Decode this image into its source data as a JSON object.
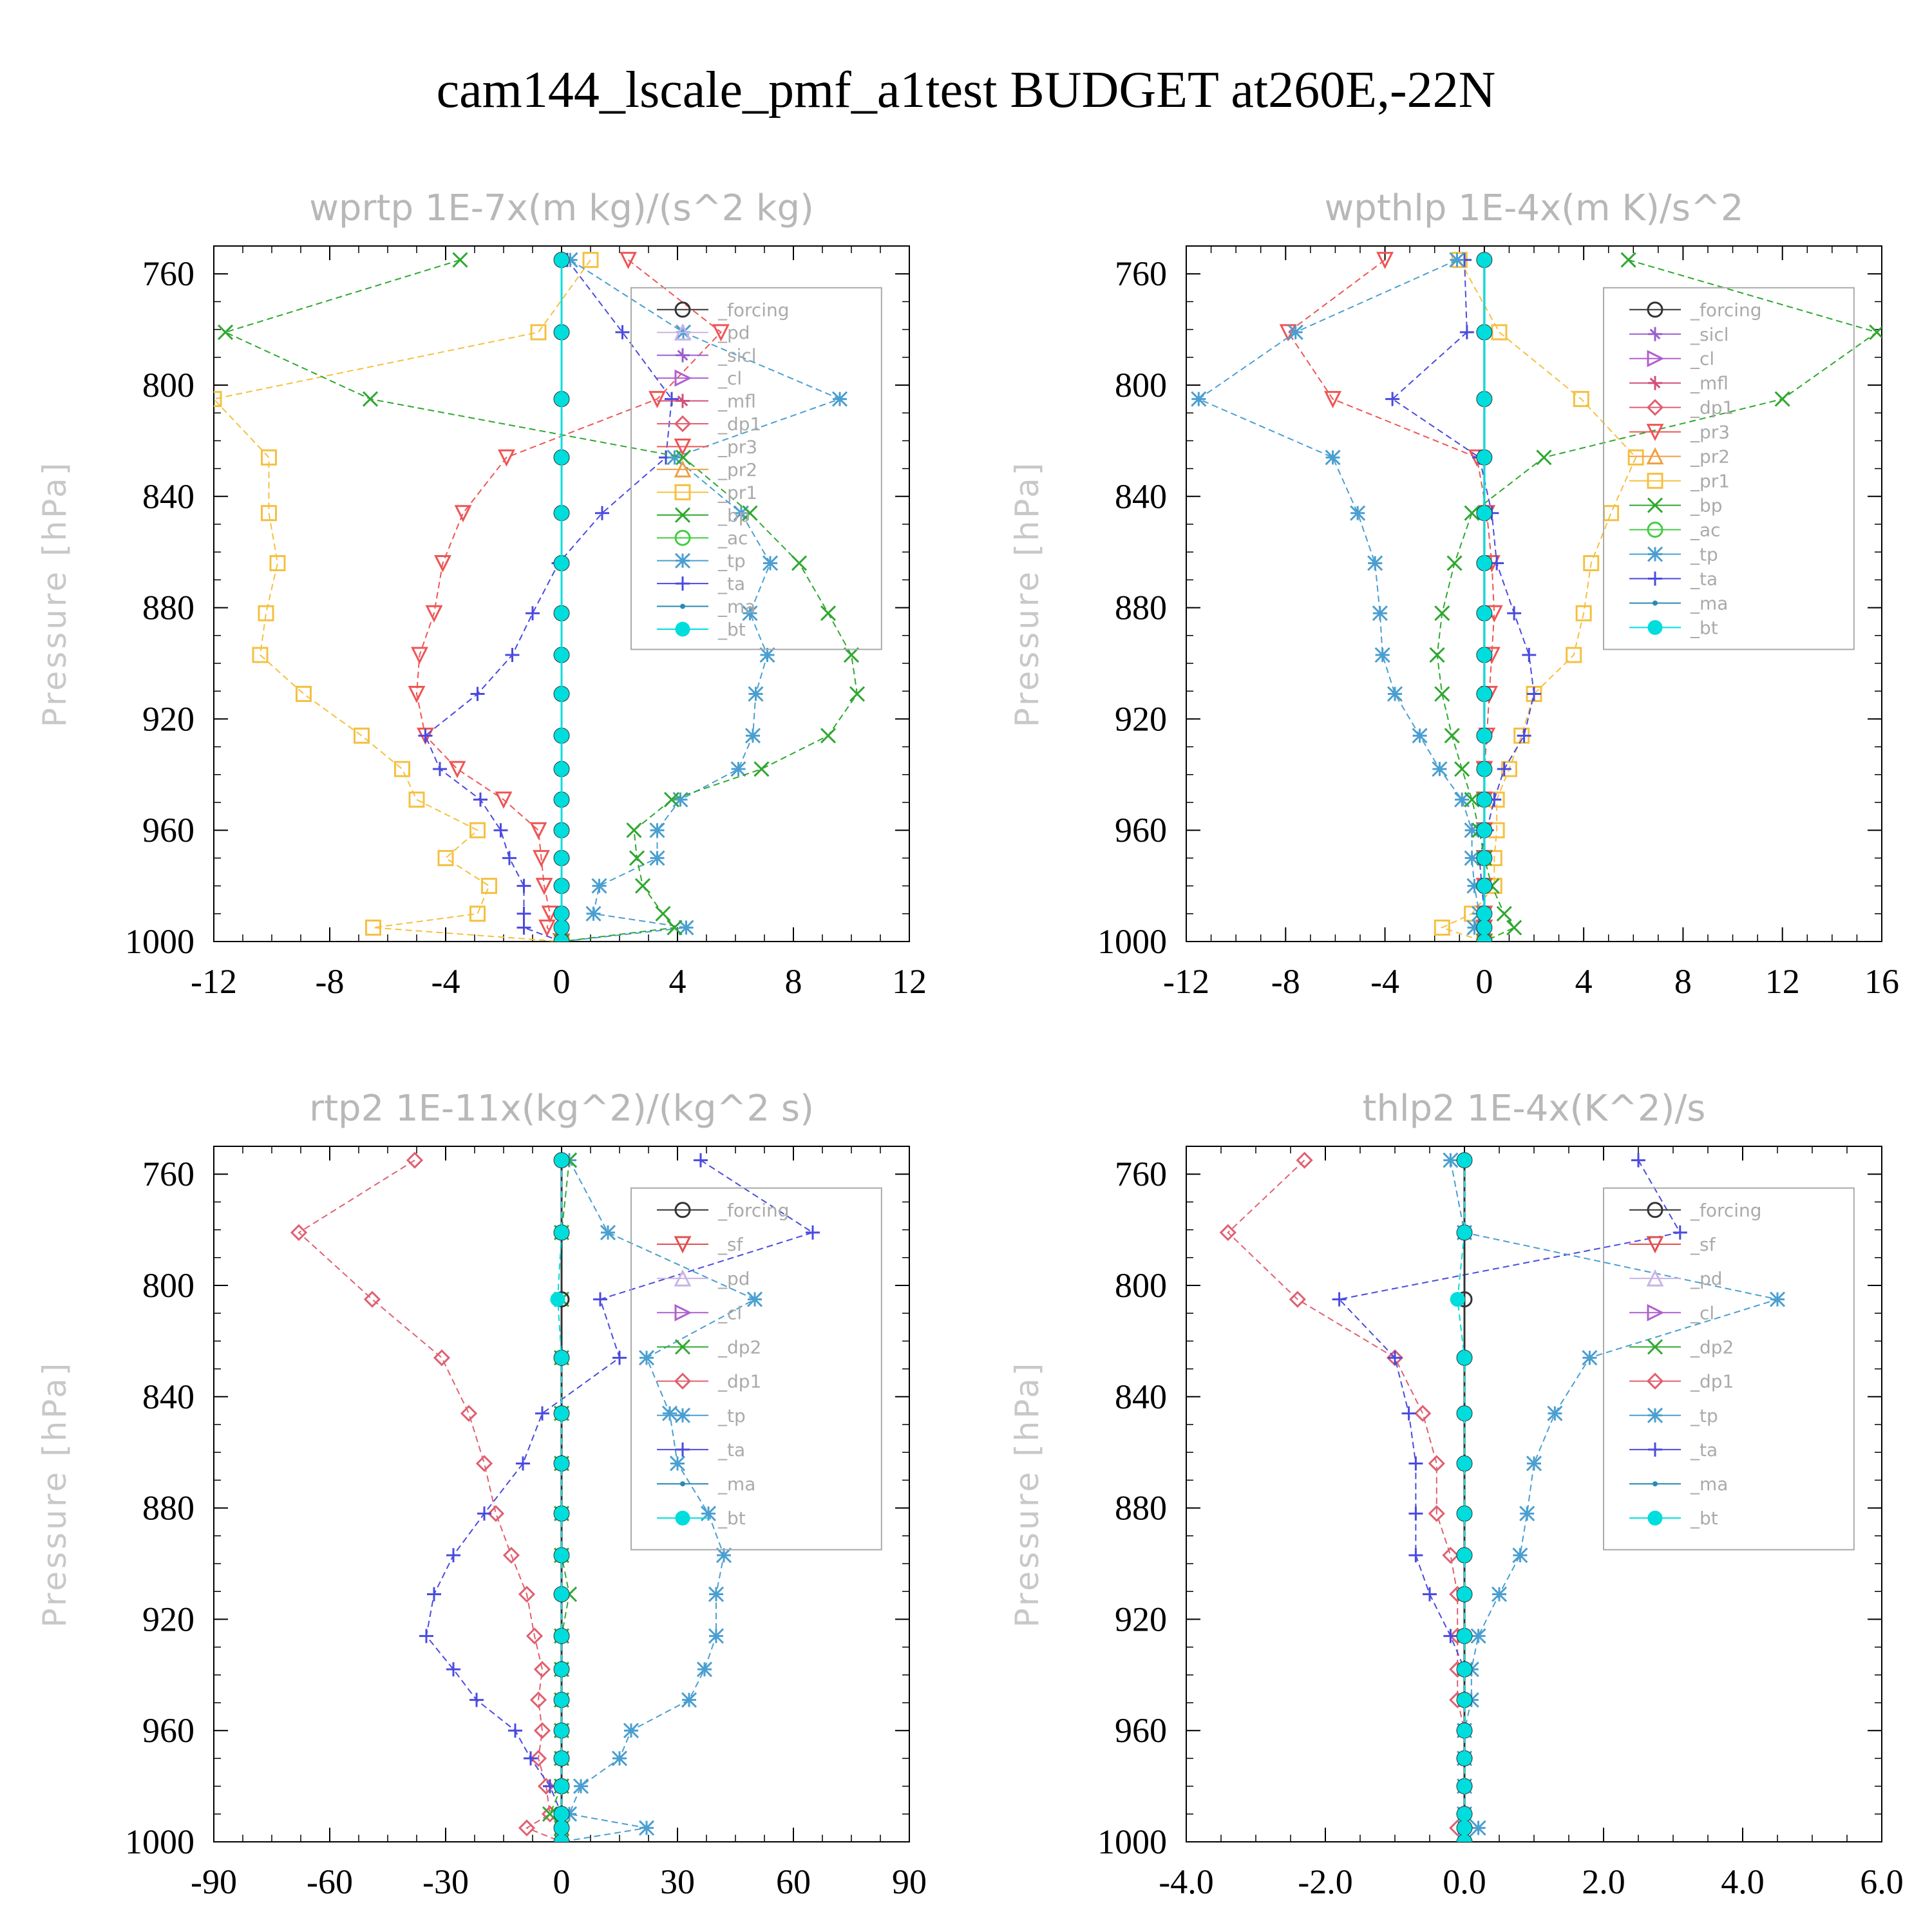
{
  "title": "cam144_lscale_pmf_a1test  BUDGET at260E,-22N",
  "colors": {
    "forcing": "#333333",
    "pd": "#c8b4e6",
    "sicl": "#9a5fcf",
    "cl": "#b05fcf",
    "mfl": "#d0507a",
    "dp1": "#e06070",
    "pr3": "#ee5555",
    "pr2": "#f0a040",
    "pr1": "#f5c040",
    "bp": "#2fa82f",
    "ac": "#44cc44",
    "tp": "#4a9fd0",
    "ta": "#4a4ae0",
    "ma": "#2a8ab0",
    "bt": "#00dddd",
    "sf": "#e05050",
    "dp2": "#33aa33"
  },
  "chart_data": [
    {
      "type": "line",
      "title": "wprtp  1E-7x(m kg)/(s^2 kg)",
      "ylabel": "Pressure [hPa]",
      "xlim": [
        -12,
        12
      ],
      "ylim": [
        1000,
        750
      ],
      "xticks": [
        "-12",
        "-8",
        "-4",
        "0",
        "4",
        "8",
        "12"
      ],
      "yticks": [
        "760",
        "800",
        "840",
        "880",
        "920",
        "960",
        "1000"
      ],
      "pressure": [
        755,
        781,
        805,
        826,
        846,
        864,
        882,
        897,
        911,
        926,
        938,
        949,
        960,
        970,
        980,
        990,
        995,
        1000
      ],
      "legend": [
        "_forcing",
        "_pd",
        "_sicl",
        "_cl",
        "_mfl",
        "_dp1",
        "_pr3",
        "_pr2",
        "_pr1",
        "_bp",
        "_ac",
        "_tp",
        "_ta",
        "_ma",
        "_bt"
      ],
      "series": [
        {
          "name": "_pr1",
          "values": [
            1,
            -0.8,
            -12,
            -10.1,
            -10.1,
            -9.8,
            -10.2,
            -10.4,
            -8.9,
            -6.9,
            -5.5,
            -5,
            -2.9,
            -4,
            -2.5,
            -2.9,
            -6.5,
            0
          ]
        },
        {
          "name": "_pr3",
          "values": [
            2.3,
            5.5,
            3.3,
            -1.9,
            -3.4,
            -4.1,
            -4.4,
            -4.9,
            -5,
            -4.7,
            -3.6,
            -2,
            -0.8,
            -0.7,
            -0.6,
            -0.4,
            -0.5,
            0
          ]
        },
        {
          "name": "_ta",
          "values": [
            0.2,
            2.1,
            3.8,
            3.6,
            1.4,
            -0.1,
            -1,
            -1.7,
            -2.9,
            -4.7,
            -4.2,
            -2.8,
            -2.1,
            -1.8,
            -1.3,
            -1.3,
            -1.3,
            0
          ]
        },
        {
          "name": "_tp",
          "values": [
            0.3,
            4.2,
            9.6,
            3.9,
            6.2,
            7.2,
            6.5,
            7.1,
            6.7,
            6.6,
            6.1,
            4.1,
            3.3,
            3.3,
            1.3,
            1.1,
            4.3,
            0
          ]
        },
        {
          "name": "_bp",
          "values": [
            -3.5,
            -11.6,
            -6.6,
            4.2,
            6.5,
            8.2,
            9.2,
            10,
            10.2,
            9.2,
            6.9,
            3.8,
            2.5,
            2.6,
            2.8,
            3.5,
            3.9,
            0
          ]
        },
        {
          "name": "_forcing",
          "values": [
            0,
            0,
            0,
            0,
            0,
            0,
            0,
            0,
            0,
            0,
            0,
            0,
            0,
            0,
            0,
            0,
            0,
            0
          ]
        },
        {
          "name": "_bt",
          "values": [
            0,
            0,
            0,
            0,
            0,
            0,
            0,
            0,
            0,
            0,
            0,
            0,
            0,
            0,
            0,
            0,
            0,
            0
          ]
        }
      ]
    },
    {
      "type": "line",
      "title": "wpthlp  1E-4x(m K)/s^2",
      "ylabel": "Pressure [hPa]",
      "xlim": [
        -12,
        16
      ],
      "ylim": [
        1000,
        750
      ],
      "xticks": [
        "-12",
        "-8",
        "-4",
        "0",
        "4",
        "8",
        "12",
        "16"
      ],
      "yticks": [
        "760",
        "800",
        "840",
        "880",
        "920",
        "960",
        "1000"
      ],
      "pressure": [
        755,
        781,
        805,
        826,
        846,
        864,
        882,
        897,
        911,
        926,
        938,
        949,
        960,
        970,
        980,
        990,
        995,
        1000
      ],
      "legend": [
        "_forcing",
        "_sicl",
        "_cl",
        "_mfl",
        "_dp1",
        "_pr3",
        "_pr2",
        "_pr1",
        "_bp",
        "_ac",
        "_tp",
        "_ta",
        "_ma",
        "_bt"
      ],
      "series": [
        {
          "name": "_pr1",
          "values": [
            -1,
            0.6,
            3.9,
            6.1,
            5.1,
            4.3,
            4,
            3.6,
            2,
            1.5,
            1,
            0.5,
            0.5,
            0.4,
            0.4,
            -0.5,
            -1.7,
            0
          ]
        },
        {
          "name": "_pr3",
          "values": [
            -4,
            -7.9,
            -6.1,
            -0.3,
            0.1,
            0.3,
            0.4,
            0.3,
            0.2,
            0.1,
            0,
            0,
            0,
            0,
            0,
            0,
            0,
            0
          ]
        },
        {
          "name": "_ta",
          "values": [
            -0.8,
            -0.7,
            -3.7,
            -0.2,
            0.3,
            0.5,
            1.2,
            1.8,
            2,
            1.6,
            0.8,
            0.4,
            0.1,
            -0.2,
            -0.1,
            0,
            -0.2,
            0
          ]
        },
        {
          "name": "_tp",
          "values": [
            -1.1,
            -7.6,
            -11.5,
            -6.1,
            -5.1,
            -4.4,
            -4.2,
            -4.1,
            -3.6,
            -2.6,
            -1.8,
            -0.9,
            -0.5,
            -0.5,
            -0.4,
            -0.2,
            -0.4,
            0
          ]
        },
        {
          "name": "_bp",
          "values": [
            5.8,
            15.8,
            12,
            2.4,
            -0.5,
            -1.2,
            -1.7,
            -1.9,
            -1.7,
            -1.3,
            -0.9,
            -0.5,
            -0.2,
            0,
            0.3,
            0.8,
            1.2,
            0
          ]
        },
        {
          "name": "_forcing",
          "values": [
            0,
            0,
            0,
            0,
            0,
            0,
            0,
            0,
            0,
            0,
            0,
            0,
            0,
            0,
            0,
            0,
            0,
            0
          ]
        },
        {
          "name": "_bt",
          "values": [
            0,
            0,
            0,
            0,
            0,
            0,
            0,
            0,
            0,
            0,
            0,
            0,
            0,
            0,
            0,
            0,
            0,
            0
          ]
        }
      ]
    },
    {
      "type": "line",
      "title": "rtp2  1E-11x(kg^2)/(kg^2 s)",
      "ylabel": "Pressure [hPa]",
      "xlim": [
        -90,
        90
      ],
      "ylim": [
        1000,
        750
      ],
      "xticks": [
        "-90",
        "-60",
        "-30",
        "0",
        "30",
        "60",
        "90"
      ],
      "yticks": [
        "760",
        "800",
        "840",
        "880",
        "920",
        "960",
        "1000"
      ],
      "pressure": [
        755,
        781,
        805,
        826,
        846,
        864,
        882,
        897,
        911,
        926,
        938,
        949,
        960,
        970,
        980,
        990,
        995,
        1000
      ],
      "legend": [
        "_forcing",
        "_sf",
        "_pd",
        "_cl",
        "_dp2",
        "_dp1",
        "_tp",
        "_ta",
        "_ma",
        "_bt"
      ],
      "series": [
        {
          "name": "_dp1",
          "values": [
            -38,
            -68,
            -49,
            -31,
            -24,
            -20,
            -17,
            -13,
            -9,
            -7,
            -5,
            -6,
            -5,
            -6,
            -4,
            -3,
            -9,
            0
          ]
        },
        {
          "name": "_ta",
          "values": [
            36,
            65,
            10,
            15,
            -5,
            -10,
            -20,
            -28,
            -33,
            -35,
            -28,
            -22,
            -12,
            -8,
            -3,
            0,
            0,
            0
          ]
        },
        {
          "name": "_tp",
          "values": [
            2,
            12,
            50,
            22,
            28,
            30,
            38,
            42,
            40,
            40,
            37,
            33,
            18,
            15,
            5,
            2,
            22,
            0
          ]
        },
        {
          "name": "_dp2",
          "values": [
            2,
            0,
            0,
            0,
            0,
            0,
            0,
            0,
            2,
            0,
            0,
            0,
            0,
            0,
            0,
            -3,
            0,
            0
          ]
        },
        {
          "name": "_forcing",
          "values": [
            0,
            0,
            0,
            0,
            0,
            0,
            0,
            0,
            0,
            0,
            0,
            0,
            0,
            0,
            0,
            0,
            0,
            0
          ]
        },
        {
          "name": "_bt",
          "values": [
            0,
            0,
            -1,
            0,
            0,
            0,
            0,
            0,
            0,
            0,
            0,
            0,
            0,
            0,
            0,
            0,
            0,
            0
          ]
        }
      ]
    },
    {
      "type": "line",
      "title": "thlp2  1E-4x(K^2)/s",
      "ylabel": "Pressure [hPa]",
      "xlim": [
        -4,
        6
      ],
      "ylim": [
        1000,
        750
      ],
      "xticks": [
        "-4.0",
        "-2.0",
        "0.0",
        "2.0",
        "4.0",
        "6.0"
      ],
      "yticks": [
        "760",
        "800",
        "840",
        "880",
        "920",
        "960",
        "1000"
      ],
      "pressure": [
        755,
        781,
        805,
        826,
        846,
        864,
        882,
        897,
        911,
        926,
        938,
        949,
        960,
        970,
        980,
        990,
        995,
        1000
      ],
      "legend": [
        "_forcing",
        "_sf",
        "_pd",
        "_cl",
        "_dp2",
        "_dp1",
        "_tp",
        "_ta",
        "_ma",
        "_bt"
      ],
      "series": [
        {
          "name": "_dp1",
          "values": [
            -2.3,
            -3.4,
            -2.4,
            -1,
            -0.6,
            -0.4,
            -0.4,
            -0.2,
            -0.1,
            -0.1,
            -0.1,
            -0.1,
            0,
            0,
            0,
            0,
            -0.1,
            0
          ]
        },
        {
          "name": "_ta",
          "values": [
            2.5,
            3.1,
            -1.8,
            -1,
            -0.8,
            -0.7,
            -0.7,
            -0.7,
            -0.5,
            -0.2,
            0,
            0,
            0,
            0,
            0,
            0,
            0,
            0
          ]
        },
        {
          "name": "_tp",
          "values": [
            -0.2,
            0,
            4.5,
            1.8,
            1.3,
            1,
            0.9,
            0.8,
            0.5,
            0.2,
            0.1,
            0.1,
            0,
            0,
            0,
            0,
            0.2,
            0
          ]
        },
        {
          "name": "_forcing",
          "values": [
            0,
            0,
            0,
            0,
            0,
            0,
            0,
            0,
            0,
            0,
            0,
            0,
            0,
            0,
            0,
            0,
            0,
            0
          ]
        },
        {
          "name": "_bt",
          "values": [
            0,
            0,
            -0.1,
            0,
            0,
            0,
            0,
            0,
            0,
            0,
            0,
            0,
            0,
            0,
            0,
            0,
            0,
            0
          ]
        }
      ]
    }
  ]
}
